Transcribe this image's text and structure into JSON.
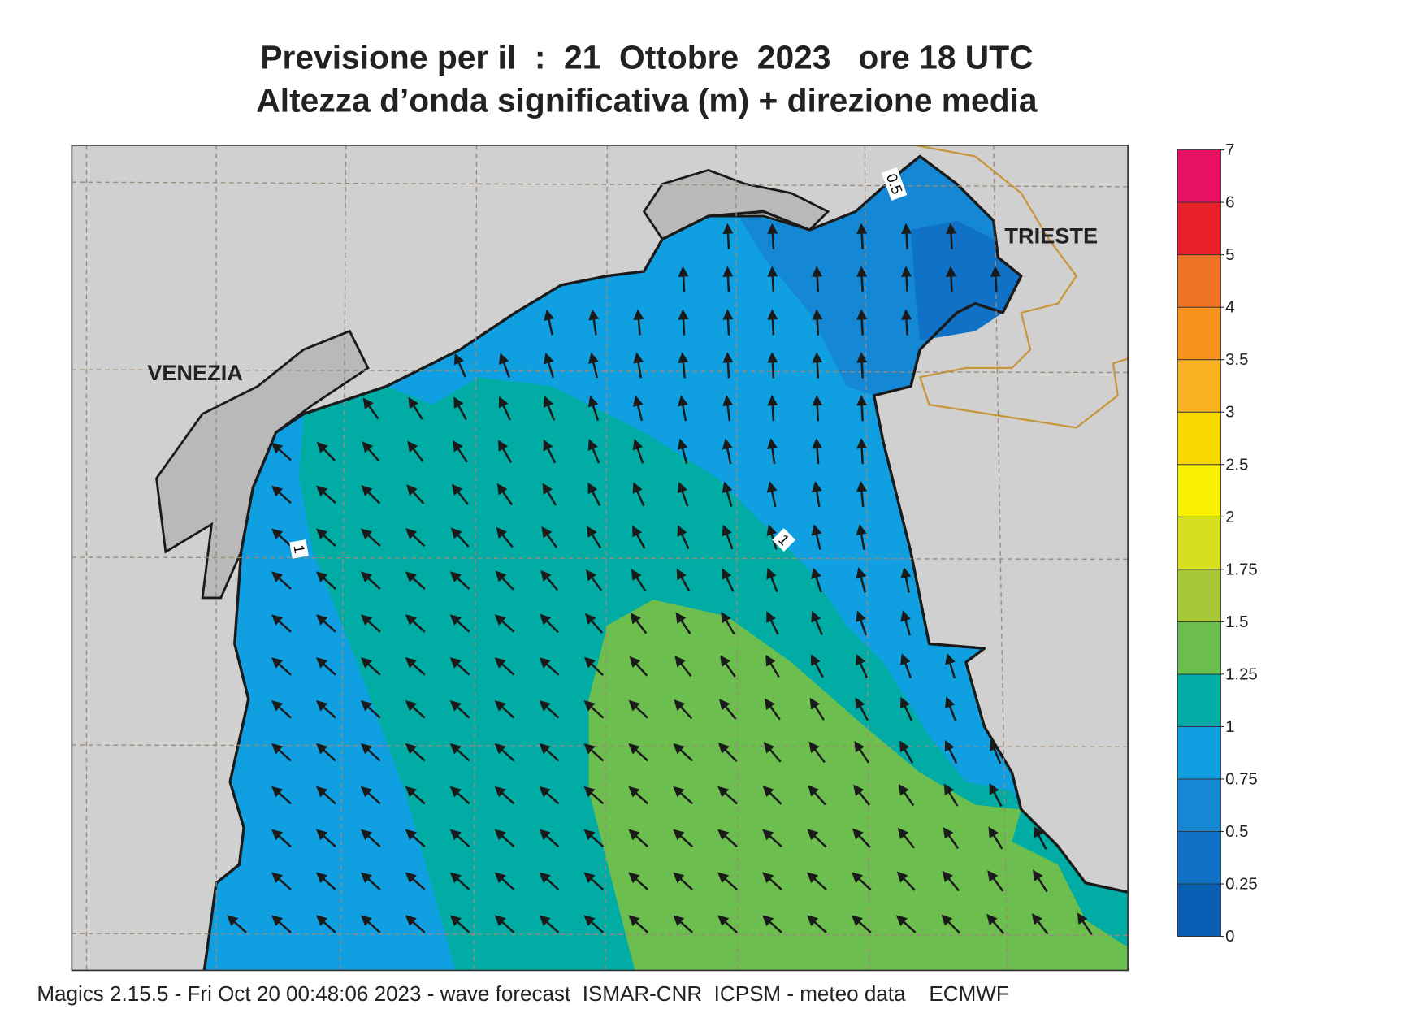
{
  "title": [
    "Previsione per il  :  21  Ottobre  2023   ore 18 UTC",
    "Altezza d’onda significativa (m) + direzione media"
  ],
  "map_labels": [
    "VENEZIA",
    "TRIESTE"
  ],
  "contour_labels": [
    "0.5",
    "1",
    "1"
  ],
  "colorbar": {
    "levels": [
      0,
      0.25,
      0.5,
      0.75,
      1,
      1.25,
      1.5,
      1.75,
      2,
      2.5,
      3,
      3.5,
      4,
      5,
      6,
      7
    ],
    "colors": [
      "#0a5fb4",
      "#0f72c6",
      "#1488d4",
      "#10a0e2",
      "#00aca4",
      "#6cbf4e",
      "#a8c83a",
      "#d6e021",
      "#f8f200",
      "#f8d800",
      "#f8b224",
      "#f7921f",
      "#f07224",
      "#e8202a",
      "#e81062"
    ]
  },
  "footer": "Magics 2.15.5 - Fri Oct 20 00:48:06 2023 - wave forecast  ISMAR-CNR  ICPSM - meteo data    ECMWF"
}
